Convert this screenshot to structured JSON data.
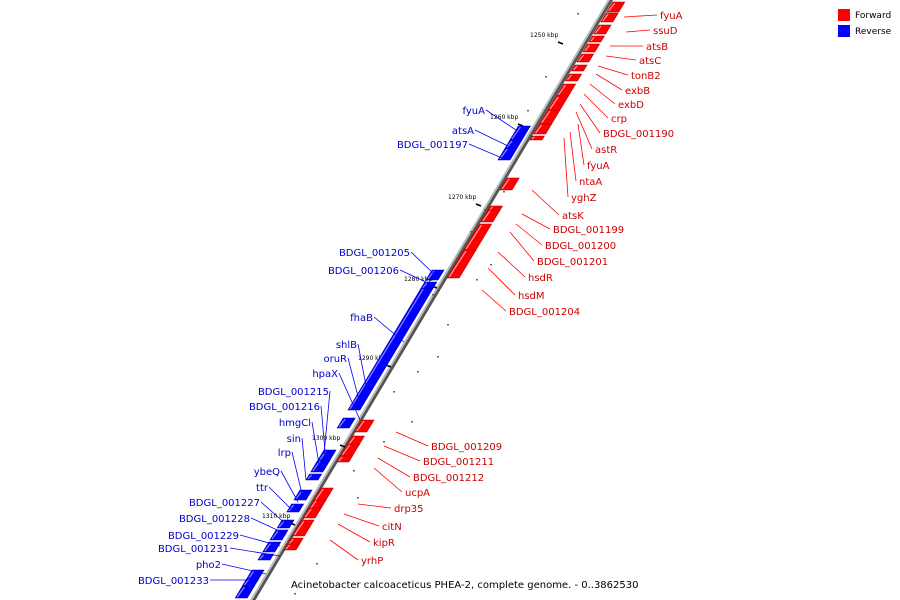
{
  "caption": "Acinetobacter calcoaceticus PHEA-2, complete genome. - 0..3862530",
  "legend": [
    {
      "label": "Forward",
      "color": "#ff0000"
    },
    {
      "label": "Reverse",
      "color": "#0000ff"
    }
  ],
  "colors": {
    "forward": "#ff0000",
    "reverse": "#0000ff",
    "backbone": "#888888"
  },
  "ticks": [
    "1250 kbp",
    "1260 kbp",
    "1270 kbp",
    "1280 kbp",
    "1290 kbp",
    "1300 kbp",
    "1310 kbp"
  ],
  "forward_genes": [
    "fyuA",
    "ssuD",
    "atsB",
    "atsC",
    "tonB2",
    "exbB",
    "exbD",
    "crp",
    "BDGL_001190",
    "astR",
    "fyuA",
    "ntaA",
    "yghZ",
    "atsK",
    "BDGL_001199",
    "BDGL_001200",
    "BDGL_001201",
    "hsdR",
    "hsdM",
    "BDGL_001204",
    "BDGL_001209",
    "BDGL_001211",
    "BDGL_001212",
    "ucpA",
    "drp35",
    "citN",
    "kipR",
    "yrhP"
  ],
  "reverse_genes": [
    "fyuA",
    "atsA",
    "BDGL_001197",
    "BDGL_001205",
    "BDGL_001206",
    "fhaB",
    "shlB",
    "oruR",
    "hpaX",
    "BDGL_001215",
    "BDGL_001216",
    "hmgCl",
    "sin",
    "lrp",
    "ybeQ",
    "ttr",
    "BDGL_001227",
    "BDGL_001228",
    "BDGL_001229",
    "BDGL_001231",
    "pho2",
    "BDGL_001233"
  ]
}
